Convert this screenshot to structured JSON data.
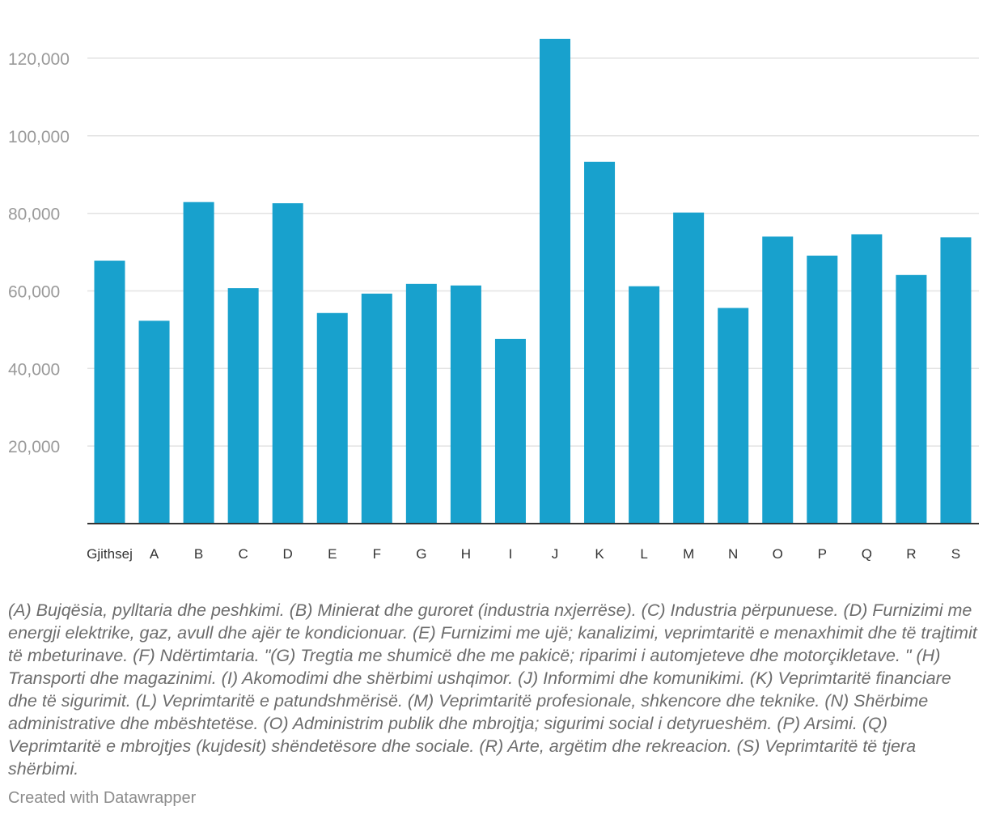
{
  "chart_data": {
    "type": "bar",
    "categories": [
      "Gjithsej",
      "A",
      "B",
      "C",
      "D",
      "E",
      "F",
      "G",
      "H",
      "I",
      "J",
      "K",
      "L",
      "M",
      "N",
      "O",
      "P",
      "Q",
      "R",
      "S"
    ],
    "values": [
      67800,
      52300,
      82900,
      60700,
      82600,
      54300,
      59300,
      61800,
      61400,
      47600,
      125000,
      93300,
      61200,
      80200,
      55600,
      74000,
      69100,
      74600,
      64100,
      73800
    ],
    "ylim": [
      0,
      125000
    ],
    "yticks": [
      20000,
      40000,
      60000,
      80000,
      100000,
      120000
    ],
    "ytick_labels": [
      "20,000",
      "40,000",
      "60,000",
      "80,000",
      "100,000",
      "120,000"
    ],
    "grid": true,
    "bar_color": "#18a1cd"
  },
  "notes": "(A) Bujqësia, pylltaria dhe peshkimi. (B) Minierat dhe guroret (industria nxjerrëse). (C) Industria përpunuese. (D) Furnizimi me energji elektrike, gaz, avull dhe ajër te kondicionuar. (E) Furnizimi me ujë; kanalizimi, veprimtaritë e menaxhimit dhe të trajtimit të mbeturinave. (F) Ndërtimtaria. \"(G) Tregtia me shumicë dhe me pakicë; riparimi i automjeteve dhe motorçikletave. \" (H) Transporti dhe magazinimi. (I) Akomodimi dhe shërbimi ushqimor. (J) Informimi dhe komunikimi. (K) Veprimtaritë financiare dhe të sigurimit. (L) Veprimtaritë e patundshmërisë. (M) Veprimtaritë profesionale, shkencore dhe teknike. (N) Shërbime administrative dhe mbështetëse. (O) Administrim publik dhe mbrojtja; sigurimi social i detyrueshëm. (P) Arsimi. (Q) Veprimtaritë e mbrojtjes (kujdesit) shëndetësore dhe sociale. (R) Arte, argëtim dhe rekreacion. (S) Veprimtaritë të tjera shërbimi.",
  "credit": "Created with Datawrapper"
}
